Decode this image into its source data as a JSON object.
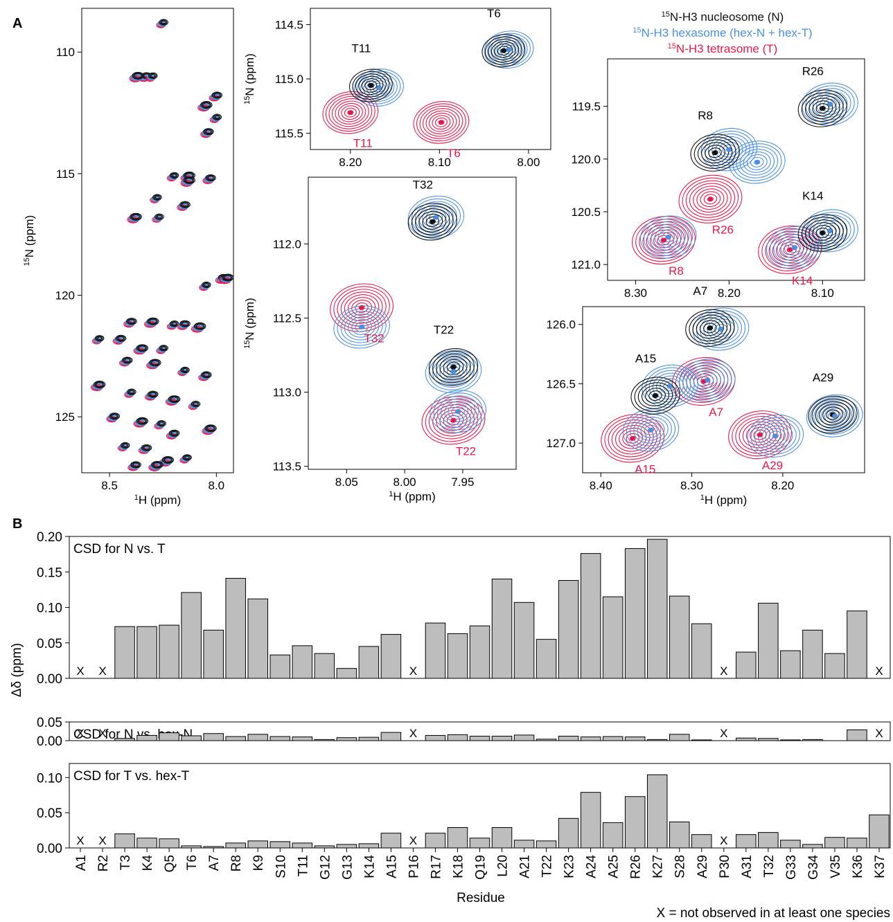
{
  "panel_labels": [
    "A",
    "B"
  ],
  "colors": {
    "nucleosome": "#111111",
    "hexasome": "#4a90e2",
    "tetrasome": "#e8174a",
    "bar_fill": "#bdbdbd"
  },
  "legend": {
    "nucleosome": "N-H3 nucleosome (N)",
    "hexasome": "N-H3 hexasome (hex-N + hex-T)",
    "tetrasome": "N-H3 tetrasome (T)",
    "iso": "15"
  },
  "unit_labels": {
    "h_axis": "H (ppm)",
    "h_sup": "1",
    "n_axis": "N (ppm)",
    "n_sup": "15"
  },
  "panel_a": {
    "overview": {
      "xticks": [
        "8.5",
        "8.0"
      ],
      "xtick_vals": [
        8.5,
        8.0
      ],
      "xlim": [
        8.63,
        7.92
      ],
      "yticks": [
        "110",
        "115",
        "120",
        "125"
      ],
      "ytick_vals": [
        110,
        115,
        120,
        125
      ],
      "ylim": [
        108.2,
        127.3
      ]
    },
    "zooms": [
      {
        "id": "zoom-t6-t11",
        "xticks": [
          "8.20",
          "8.10",
          "8.00"
        ],
        "xtick_vals": [
          8.2,
          8.1,
          8.0
        ],
        "xlim": [
          8.245,
          7.975
        ],
        "yticks": [
          "114.5",
          "115.0",
          "115.5"
        ],
        "ytick_vals": [
          114.5,
          115.0,
          115.5
        ],
        "ylim": [
          114.35,
          115.65
        ],
        "peaks": [
          {
            "label": "T11",
            "species": "N",
            "x": 8.177,
            "y": 115.06
          },
          {
            "label": "",
            "species": "hex",
            "x": 8.168,
            "y": 115.08
          },
          {
            "label": "T11",
            "species": "T",
            "x": 8.2,
            "y": 115.31
          },
          {
            "label": "T6",
            "species": "N",
            "x": 8.028,
            "y": 114.74
          },
          {
            "label": "",
            "species": "hex",
            "x": 8.022,
            "y": 114.73
          },
          {
            "label": "T6",
            "species": "T",
            "x": 8.098,
            "y": 115.4
          }
        ]
      },
      {
        "id": "zoom-t22-t32",
        "xticks": [
          "8.05",
          "8.00",
          "7.95"
        ],
        "xtick_vals": [
          8.05,
          8.0,
          7.95
        ],
        "xlim": [
          8.083,
          7.904
        ],
        "yticks": [
          "112.0",
          "112.5",
          "113.0",
          "113.5"
        ],
        "ytick_vals": [
          112.0,
          112.5,
          113.0,
          113.5
        ],
        "ylim": [
          111.55,
          113.52
        ],
        "peaks": [
          {
            "label": "T32",
            "species": "N",
            "x": 7.976,
            "y": 111.85
          },
          {
            "label": "",
            "species": "hex",
            "x": 7.973,
            "y": 111.82
          },
          {
            "label": "T32",
            "species": "T",
            "x": 8.037,
            "y": 112.43
          },
          {
            "label": "",
            "species": "hex",
            "x": 8.037,
            "y": 112.56
          },
          {
            "label": "T22",
            "species": "N",
            "x": 7.958,
            "y": 112.83
          },
          {
            "label": "",
            "species": "hex",
            "x": 7.958,
            "y": 112.86
          },
          {
            "label": "T22",
            "species": "T",
            "x": 7.958,
            "y": 113.19
          },
          {
            "label": "",
            "species": "hex",
            "x": 7.954,
            "y": 113.13
          }
        ]
      },
      {
        "id": "zoom-r8-r26-k14",
        "xticks": [
          "8.30",
          "8.20",
          "8.10"
        ],
        "xtick_vals": [
          8.3,
          8.2,
          8.1
        ],
        "xlim": [
          8.33,
          8.055
        ],
        "yticks": [
          "119.5",
          "120.0",
          "120.5",
          "121.0"
        ],
        "ytick_vals": [
          119.5,
          120.0,
          120.5,
          121.0
        ],
        "ylim": [
          119.05,
          121.15
        ],
        "peaks": [
          {
            "label": "R26",
            "species": "N",
            "x": 8.1,
            "y": 119.52
          },
          {
            "label": "",
            "species": "hex",
            "x": 8.092,
            "y": 119.48
          },
          {
            "label": "R8",
            "species": "N",
            "x": 8.215,
            "y": 119.94
          },
          {
            "label": "",
            "species": "hex",
            "x": 8.2,
            "y": 119.91
          },
          {
            "label": "",
            "species": "hex",
            "x": 8.17,
            "y": 120.03
          },
          {
            "label": "R26",
            "species": "T",
            "x": 8.22,
            "y": 120.38
          },
          {
            "label": "R8",
            "species": "T",
            "x": 8.27,
            "y": 120.77
          },
          {
            "label": "",
            "species": "hex",
            "x": 8.265,
            "y": 120.74
          },
          {
            "label": "K14",
            "species": "N",
            "x": 8.1,
            "y": 120.7
          },
          {
            "label": "",
            "species": "hex",
            "x": 8.092,
            "y": 120.68
          },
          {
            "label": "K14",
            "species": "T",
            "x": 8.135,
            "y": 120.86
          },
          {
            "label": "",
            "species": "hex",
            "x": 8.13,
            "y": 120.84
          }
        ]
      },
      {
        "id": "zoom-a7-a15-a29",
        "xticks": [
          "8.40",
          "8.30",
          "8.20"
        ],
        "xtick_vals": [
          8.4,
          8.3,
          8.2
        ],
        "xlim": [
          8.42,
          8.11
        ],
        "yticks": [
          "126.0",
          "126.5",
          "127.0"
        ],
        "ytick_vals": [
          126.0,
          126.5,
          127.0
        ],
        "ylim": [
          125.85,
          127.25
        ],
        "peaks": [
          {
            "label": "A7",
            "species": "N",
            "x": 8.28,
            "y": 126.03
          },
          {
            "label": "",
            "species": "hex",
            "x": 8.268,
            "y": 126.04
          },
          {
            "label": "A7",
            "species": "T",
            "x": 8.287,
            "y": 126.48
          },
          {
            "label": "",
            "species": "hex",
            "x": 8.283,
            "y": 126.47
          },
          {
            "label": "A15",
            "species": "N",
            "x": 8.34,
            "y": 126.6
          },
          {
            "label": "",
            "species": "hex",
            "x": 8.324,
            "y": 126.52
          },
          {
            "label": "A15",
            "species": "T",
            "x": 8.365,
            "y": 126.96
          },
          {
            "label": "",
            "species": "hex",
            "x": 8.345,
            "y": 126.89
          },
          {
            "label": "A29",
            "species": "N",
            "x": 8.145,
            "y": 126.76
          },
          {
            "label": "",
            "species": "hex",
            "x": 8.143,
            "y": 126.77
          },
          {
            "label": "A29",
            "species": "T",
            "x": 8.225,
            "y": 126.93
          },
          {
            "label": "",
            "species": "hex",
            "x": 8.208,
            "y": 126.94
          }
        ]
      }
    ]
  },
  "chart_data": [
    {
      "type": "bar",
      "title": "CSD for N vs. T",
      "xlabel": "Residue",
      "ylabel": "Δδ (ppm)",
      "ylim": [
        0,
        0.2
      ],
      "yticks": [
        "0.00",
        "0.05",
        "0.10",
        "0.15",
        "0.20"
      ],
      "categories": [
        "A1",
        "R2",
        "T3",
        "K4",
        "Q5",
        "T6",
        "A7",
        "R8",
        "K9",
        "S10",
        "T11",
        "G12",
        "G13",
        "K14",
        "A15",
        "P16",
        "R17",
        "K18",
        "Q19",
        "L20",
        "A21",
        "T22",
        "K23",
        "A24",
        "A25",
        "R26",
        "K27",
        "S28",
        "A29",
        "P30",
        "A31",
        "T32",
        "G33",
        "G34",
        "V35",
        "K36",
        "K37"
      ],
      "values": [
        null,
        null,
        0.073,
        0.073,
        0.075,
        0.121,
        0.068,
        0.141,
        0.112,
        0.033,
        0.046,
        0.035,
        0.014,
        0.045,
        0.062,
        null,
        0.078,
        0.063,
        0.074,
        0.14,
        0.107,
        0.055,
        0.138,
        0.176,
        0.115,
        0.183,
        0.196,
        0.116,
        0.077,
        null,
        0.037,
        0.106,
        0.039,
        0.068,
        0.035,
        0.095,
        null
      ]
    },
    {
      "type": "bar",
      "title": "CSD for N vs. hex-N",
      "ylim": [
        0,
        0.05
      ],
      "yticks": [
        "0.00",
        "0.05"
      ],
      "values": [
        null,
        null,
        0.006,
        0.014,
        0.021,
        0.013,
        0.019,
        0.011,
        0.017,
        0.011,
        0.01,
        0.003,
        0.008,
        0.009,
        0.022,
        null,
        0.014,
        0.016,
        0.012,
        0.012,
        0.015,
        0.004,
        0.012,
        0.01,
        0.011,
        0.01,
        0.003,
        0.017,
        0.002,
        null,
        0.007,
        0.006,
        0.002,
        0.003,
        null,
        0.029,
        null
      ]
    },
    {
      "type": "bar",
      "title": "CSD for T vs. hex-T",
      "ylim": [
        0,
        0.12
      ],
      "yticks": [
        "0.00",
        "0.05",
        "0.10"
      ],
      "values": [
        null,
        null,
        0.02,
        0.014,
        0.013,
        0.003,
        0.002,
        0.007,
        0.01,
        0.009,
        0.007,
        0.003,
        0.005,
        0.006,
        0.021,
        null,
        0.021,
        0.029,
        0.014,
        0.029,
        0.011,
        0.01,
        0.042,
        0.079,
        0.036,
        0.073,
        0.104,
        0.037,
        0.019,
        null,
        0.019,
        0.022,
        0.011,
        0.005,
        0.015,
        0.014,
        0.047
      ]
    }
  ],
  "missing_marker": "X",
  "footnote": "X = not observed in at least one species"
}
